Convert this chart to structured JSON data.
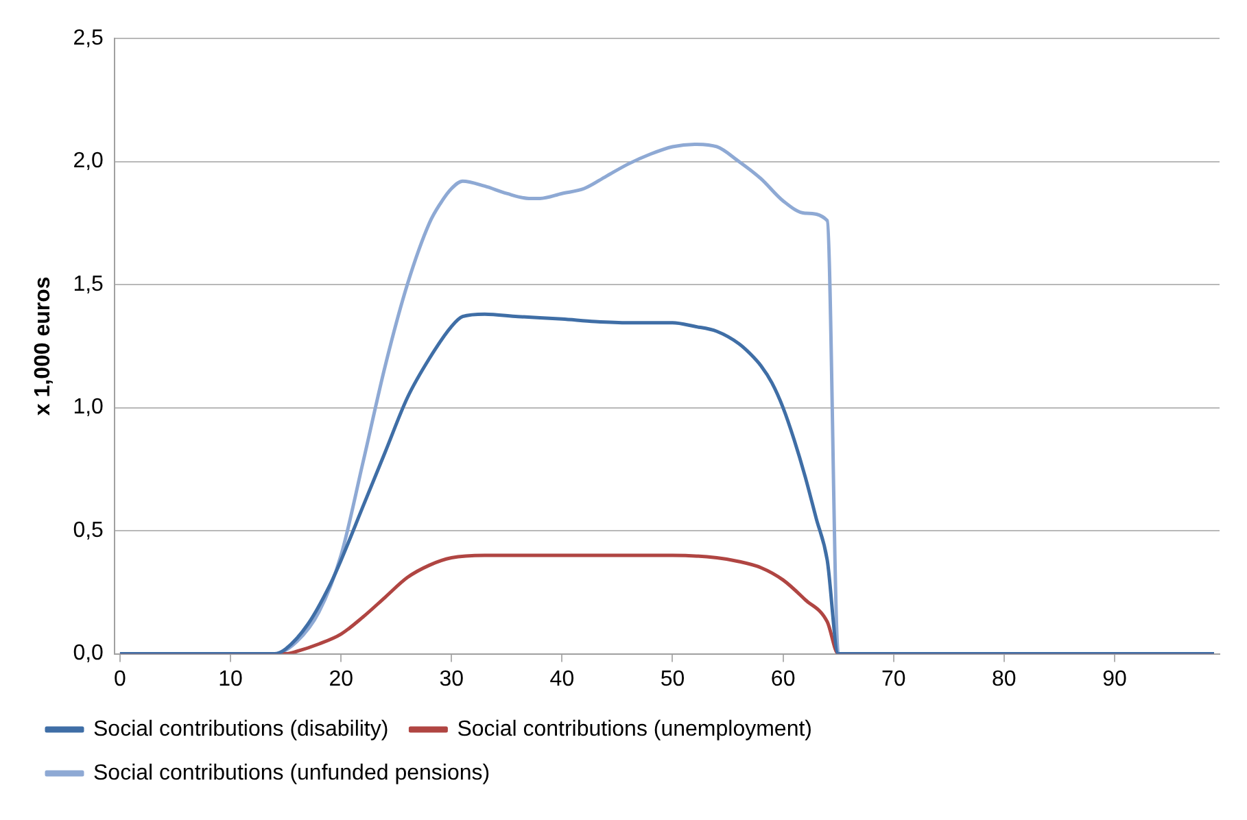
{
  "chart_data": {
    "type": "line",
    "ylabel": "x 1,000 euros",
    "xlim": [
      -0.5,
      99.5
    ],
    "xticks": [
      0,
      10,
      20,
      30,
      40,
      50,
      60,
      70,
      80,
      90
    ],
    "ylim": [
      0,
      2.5
    ],
    "yticks": [
      {
        "value": 0,
        "label": "0,0"
      },
      {
        "value": 0.5,
        "label": "0,5"
      },
      {
        "value": 1,
        "label": "1,0"
      },
      {
        "value": 1.5,
        "label": "1,5"
      },
      {
        "value": 2,
        "label": "2,0"
      },
      {
        "value": 2.5,
        "label": "2,5"
      }
    ],
    "grid": "y",
    "legend": "bottom",
    "marker": "none",
    "line_style": "solid",
    "series": [
      {
        "name": "Social contributions (disability)",
        "color": "#3f6ea6",
        "x": [
          0,
          14,
          15,
          17,
          19,
          20,
          22,
          24,
          26,
          28,
          30,
          31,
          33,
          36,
          40,
          43,
          46,
          50,
          52,
          54,
          56,
          57,
          58,
          59,
          60,
          61,
          62,
          63,
          64,
          65,
          99
        ],
        "values": [
          0,
          0,
          0.02,
          0.12,
          0.28,
          0.38,
          0.6,
          0.82,
          1.04,
          1.2,
          1.33,
          1.37,
          1.38,
          1.37,
          1.36,
          1.35,
          1.345,
          1.345,
          1.33,
          1.31,
          1.26,
          1.22,
          1.17,
          1.1,
          1.0,
          0.87,
          0.72,
          0.55,
          0.38,
          0,
          0
        ]
      },
      {
        "name": "Social contributions (unemployment)",
        "color": "#b04542",
        "x": [
          0,
          15,
          16,
          18,
          20,
          22,
          24,
          26,
          28,
          30,
          33,
          50,
          54,
          56,
          58,
          60,
          62,
          64,
          65,
          99
        ],
        "values": [
          0,
          0,
          0.01,
          0.04,
          0.08,
          0.15,
          0.23,
          0.31,
          0.36,
          0.39,
          0.4,
          0.4,
          0.39,
          0.375,
          0.35,
          0.3,
          0.22,
          0.13,
          0,
          0
        ]
      },
      {
        "name": "Social contributions (unfunded pensions)",
        "color": "#8ea9d4",
        "x": [
          0,
          14,
          16,
          18,
          20,
          22,
          24,
          26,
          28,
          29,
          30,
          31,
          33,
          35,
          37,
          38,
          40,
          42,
          44,
          46,
          48,
          50,
          52,
          54,
          56,
          58,
          60,
          62,
          64,
          65,
          99
        ],
        "values": [
          0,
          0,
          0.05,
          0.17,
          0.4,
          0.78,
          1.17,
          1.5,
          1.75,
          1.83,
          1.89,
          1.92,
          1.9,
          1.87,
          1.85,
          1.85,
          1.87,
          1.89,
          1.94,
          1.99,
          2.03,
          2.06,
          2.07,
          2.06,
          2.0,
          1.93,
          1.84,
          1.79,
          1.76,
          0,
          0
        ]
      }
    ]
  }
}
